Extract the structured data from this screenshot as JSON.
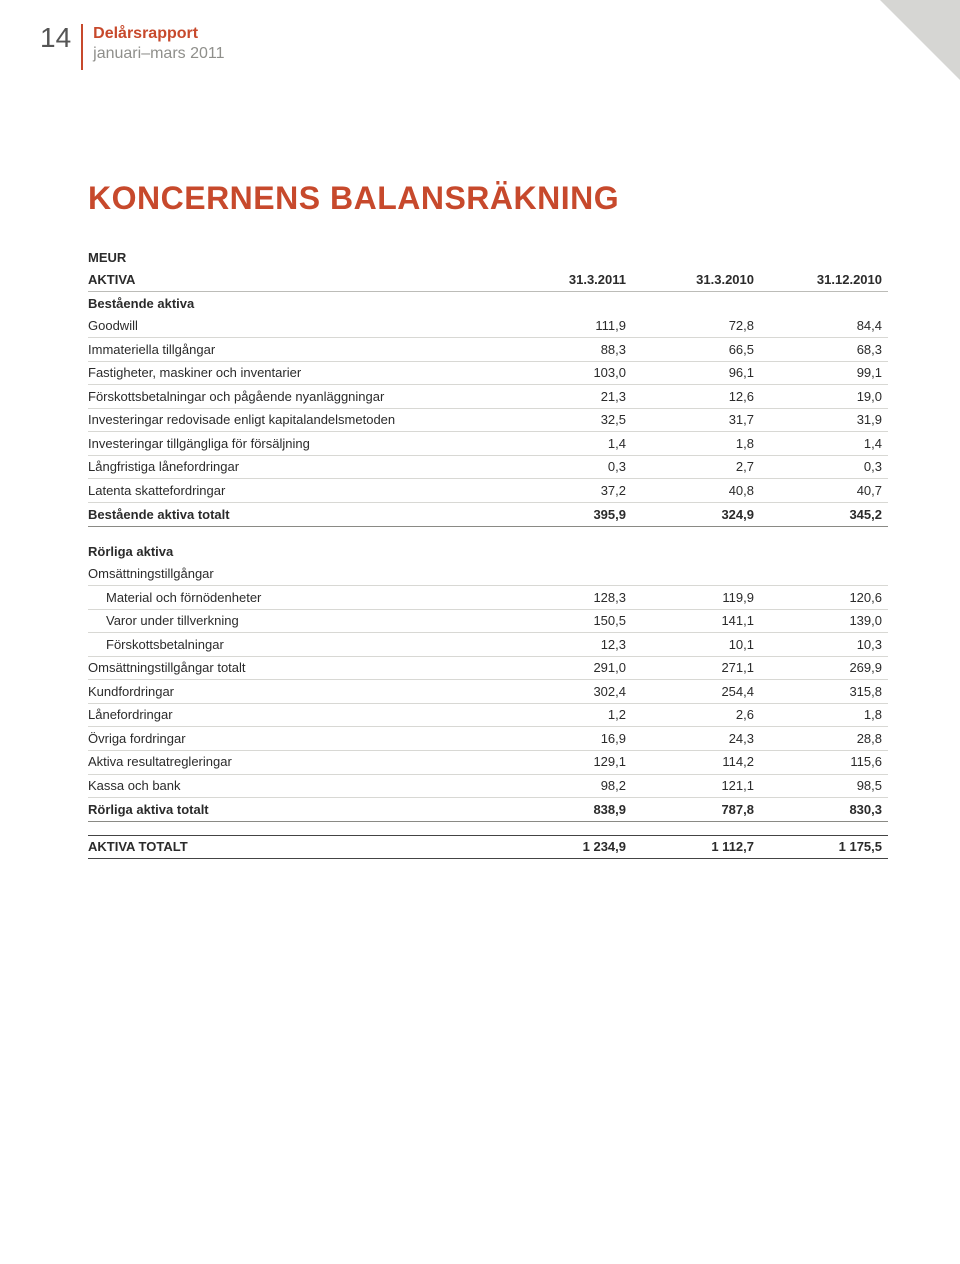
{
  "page_number": "14",
  "header": {
    "title": "Delårsrapport",
    "subtitle": "januari–mars 2011"
  },
  "title": "KONCERNENS BALANSRÄKNING",
  "currency_label": "MEUR",
  "columns": {
    "c0": "AKTIVA",
    "c1": "31.3.2011",
    "c2": "31.3.2010",
    "c3": "31.12.2010"
  },
  "section1": {
    "heading": "Bestående aktiva",
    "rows": [
      {
        "label": "Goodwill",
        "v1": "111,9",
        "v2": "72,8",
        "v3": "84,4"
      },
      {
        "label": "Immateriella tillgångar",
        "v1": "88,3",
        "v2": "66,5",
        "v3": "68,3"
      },
      {
        "label": "Fastigheter, maskiner och inventarier",
        "v1": "103,0",
        "v2": "96,1",
        "v3": "99,1"
      },
      {
        "label": "Förskottsbetalningar och pågående nyanläggningar",
        "v1": "21,3",
        "v2": "12,6",
        "v3": "19,0"
      },
      {
        "label": "Investeringar redovisade enligt kapitalandelsmetoden",
        "v1": "32,5",
        "v2": "31,7",
        "v3": "31,9"
      },
      {
        "label": "Investeringar tillgängliga för försäljning",
        "v1": "1,4",
        "v2": "1,8",
        "v3": "1,4"
      },
      {
        "label": "Långfristiga lånefordringar",
        "v1": "0,3",
        "v2": "2,7",
        "v3": "0,3"
      },
      {
        "label": "Latenta skattefordringar",
        "v1": "37,2",
        "v2": "40,8",
        "v3": "40,7"
      }
    ],
    "total": {
      "label": "Bestående aktiva totalt",
      "v1": "395,9",
      "v2": "324,9",
      "v3": "345,2"
    }
  },
  "section2": {
    "heading": "Rörliga aktiva",
    "subheading": "Omsättningstillgångar",
    "subrows": [
      {
        "label": "Material och förnödenheter",
        "v1": "128,3",
        "v2": "119,9",
        "v3": "120,6"
      },
      {
        "label": "Varor under tillverkning",
        "v1": "150,5",
        "v2": "141,1",
        "v3": "139,0"
      },
      {
        "label": "Förskottsbetalningar",
        "v1": "12,3",
        "v2": "10,1",
        "v3": "10,3"
      }
    ],
    "rows": [
      {
        "label": "Omsättningstillgångar totalt",
        "v1": "291,0",
        "v2": "271,1",
        "v3": "269,9"
      },
      {
        "label": "Kundfordringar",
        "v1": "302,4",
        "v2": "254,4",
        "v3": "315,8"
      },
      {
        "label": "Lånefordringar",
        "v1": "1,2",
        "v2": "2,6",
        "v3": "1,8"
      },
      {
        "label": "Övriga fordringar",
        "v1": "16,9",
        "v2": "24,3",
        "v3": "28,8"
      },
      {
        "label": "Aktiva resultatregleringar",
        "v1": "129,1",
        "v2": "114,2",
        "v3": "115,6"
      },
      {
        "label": "Kassa och bank",
        "v1": "98,2",
        "v2": "121,1",
        "v3": "98,5"
      }
    ],
    "total": {
      "label": "Rörliga aktiva totalt",
      "v1": "838,9",
      "v2": "787,8",
      "v3": "830,3"
    }
  },
  "grand_total": {
    "label": "AKTIVA TOTALT",
    "v1": "1 234,9",
    "v2": "1 112,7",
    "v3": "1 175,5"
  }
}
